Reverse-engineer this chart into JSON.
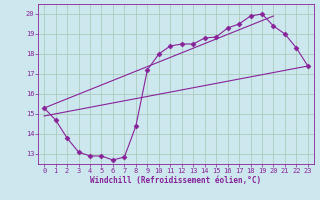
{
  "xlabel": "Windchill (Refroidissement éolien,°C)",
  "bg_color": "#cce8ee",
  "line_color": "#882299",
  "grid_color": "#aaccbb",
  "xlim": [
    -0.5,
    23.5
  ],
  "ylim": [
    12.5,
    20.5
  ],
  "xticks": [
    0,
    1,
    2,
    3,
    4,
    5,
    6,
    7,
    8,
    9,
    10,
    11,
    12,
    13,
    14,
    15,
    16,
    17,
    18,
    19,
    20,
    21,
    22,
    23
  ],
  "yticks": [
    13,
    14,
    15,
    16,
    17,
    18,
    19,
    20
  ],
  "line1_x": [
    0,
    1,
    2,
    3,
    4,
    5,
    6,
    7,
    8,
    9,
    10,
    11,
    12,
    13,
    14,
    15,
    16,
    17,
    18,
    19,
    20,
    21,
    22,
    23
  ],
  "line1_y": [
    15.3,
    14.7,
    13.8,
    13.1,
    12.9,
    12.9,
    12.7,
    12.85,
    14.4,
    17.2,
    18.0,
    18.4,
    18.5,
    18.5,
    18.8,
    18.85,
    19.3,
    19.5,
    19.9,
    20.0,
    19.4,
    19.0,
    18.3,
    17.4
  ],
  "line2_x": [
    0,
    23
  ],
  "line2_y": [
    14.9,
    17.4
  ],
  "line3_x": [
    0,
    20
  ],
  "line3_y": [
    15.3,
    19.9
  ],
  "tick_fontsize": 5.0,
  "xlabel_fontsize": 5.5,
  "marker": "D",
  "markersize": 2.5,
  "linewidth": 0.8
}
